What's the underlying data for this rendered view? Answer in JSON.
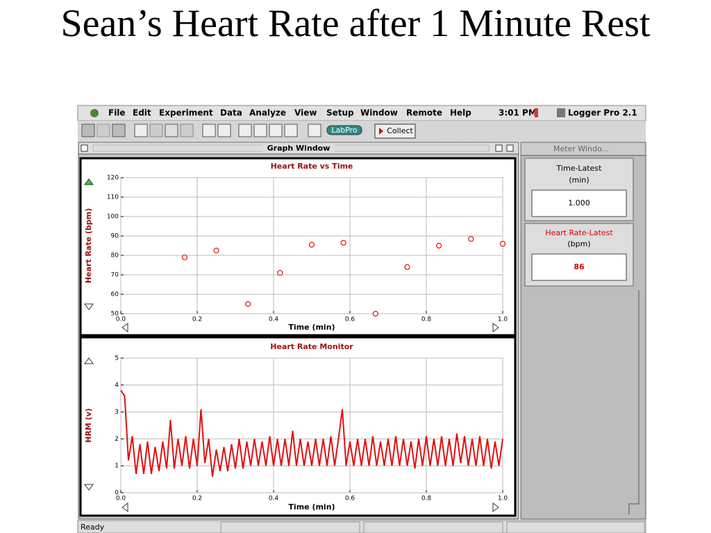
{
  "slide_title": "Sean’s Heart Rate after 1 Minute Rest",
  "menu_bar": {
    "items": [
      "File",
      "Edit",
      "Experiment",
      "Data",
      "Analyze",
      "View",
      "Setup",
      "Window",
      "Remote",
      "Help"
    ],
    "clock": "3:01 PM",
    "app": "Logger Pro 2.1"
  },
  "toolbar": {
    "interface": "LabPro",
    "collect": "Collect"
  },
  "graph_window": {
    "title": "Graph Window"
  },
  "chart_data": [
    {
      "type": "scatter",
      "title": "Heart Rate vs Time",
      "x_label": "Time (min)",
      "y_label": "Heart Rate (bpm)",
      "color": "#e01010",
      "grid": true,
      "x": [
        0.167,
        0.25,
        0.333,
        0.417,
        0.5,
        0.583,
        0.667,
        0.75,
        0.833,
        0.917,
        1.0
      ],
      "values": [
        79,
        82.5,
        55,
        71,
        85.5,
        86.5,
        50,
        74,
        85,
        88.5,
        86
      ],
      "xlim": [
        0,
        1
      ],
      "xticks": [
        {
          "value": 0,
          "label": "0.0"
        },
        0.2,
        0.4,
        0.6,
        0.8,
        {
          "value": 1,
          "label": "1.0"
        }
      ],
      "ylim": [
        50,
        120
      ],
      "yticks": [
        50,
        60,
        70,
        80,
        90,
        100,
        110,
        120
      ]
    },
    {
      "type": "line",
      "title": "Heart Rate Monitor",
      "x_label": "Time (min)",
      "y_label": "HRM (v)",
      "color": "#e01010",
      "grid": true,
      "x": [
        0,
        0.01,
        0.02,
        0.03,
        0.04,
        0.05,
        0.06,
        0.07,
        0.08,
        0.09,
        0.1,
        0.11,
        0.12,
        0.13,
        0.14,
        0.15,
        0.16,
        0.17,
        0.18,
        0.19,
        0.2,
        0.21,
        0.22,
        0.23,
        0.24,
        0.25,
        0.26,
        0.27,
        0.28,
        0.29,
        0.3,
        0.31,
        0.32,
        0.33,
        0.34,
        0.35,
        0.36,
        0.37,
        0.38,
        0.39,
        0.4,
        0.41,
        0.42,
        0.43,
        0.44,
        0.45,
        0.46,
        0.47,
        0.48,
        0.49,
        0.5,
        0.51,
        0.52,
        0.53,
        0.54,
        0.55,
        0.56,
        0.57,
        0.58,
        0.59,
        0.6,
        0.61,
        0.62,
        0.63,
        0.64,
        0.65,
        0.66,
        0.67,
        0.68,
        0.69,
        0.7,
        0.71,
        0.72,
        0.73,
        0.74,
        0.75,
        0.76,
        0.77,
        0.78,
        0.79,
        0.8,
        0.81,
        0.82,
        0.83,
        0.84,
        0.85,
        0.86,
        0.87,
        0.88,
        0.89,
        0.9,
        0.91,
        0.92,
        0.93,
        0.94,
        0.95,
        0.96,
        0.97,
        0.98,
        0.99,
        1.0
      ],
      "values": [
        3.8,
        3.6,
        1.2,
        2.1,
        0.7,
        1.8,
        0.7,
        1.9,
        0.7,
        1.7,
        0.8,
        1.9,
        0.9,
        2.7,
        0.9,
        2.0,
        1.0,
        2.1,
        0.9,
        2.0,
        1.0,
        3.1,
        1.1,
        2.0,
        0.6,
        1.6,
        0.8,
        1.7,
        0.8,
        1.8,
        0.9,
        2.0,
        0.9,
        1.9,
        1.0,
        2.0,
        1.0,
        1.9,
        1.0,
        2.1,
        1.0,
        2.0,
        1.0,
        2.0,
        1.0,
        2.3,
        1.0,
        2.0,
        1.0,
        1.9,
        1.0,
        2.0,
        1.0,
        2.0,
        1.0,
        2.1,
        1.0,
        2.0,
        3.1,
        1.0,
        1.9,
        1.0,
        2.0,
        1.0,
        2.0,
        1.0,
        2.1,
        1.0,
        1.9,
        1.0,
        2.0,
        1.0,
        2.1,
        1.0,
        2.0,
        1.0,
        1.9,
        0.9,
        2.0,
        1.0,
        2.1,
        1.0,
        2.0,
        1.0,
        2.1,
        1.0,
        2.0,
        1.0,
        2.2,
        1.1,
        2.1,
        1.0,
        2.0,
        1.0,
        2.1,
        1.0,
        2.0,
        0.9,
        1.9,
        1.0,
        2.0
      ],
      "xlim": [
        0,
        1
      ],
      "xticks": [
        {
          "value": 0,
          "label": "0.0"
        },
        0.2,
        0.4,
        0.6,
        0.8,
        {
          "value": 1,
          "label": "1.0"
        }
      ],
      "ylim": [
        0,
        5
      ],
      "yticks": [
        0,
        1,
        2,
        3,
        4,
        5
      ]
    }
  ],
  "meter_window": {
    "title": "Meter Windo...",
    "meters": [
      {
        "name": "Time-Latest",
        "unit": "(min)",
        "value": "1.000"
      },
      {
        "name": "Heart Rate-Latest",
        "unit": "(bpm)",
        "value": "86"
      }
    ]
  },
  "status_bar": {
    "text": "Ready"
  }
}
